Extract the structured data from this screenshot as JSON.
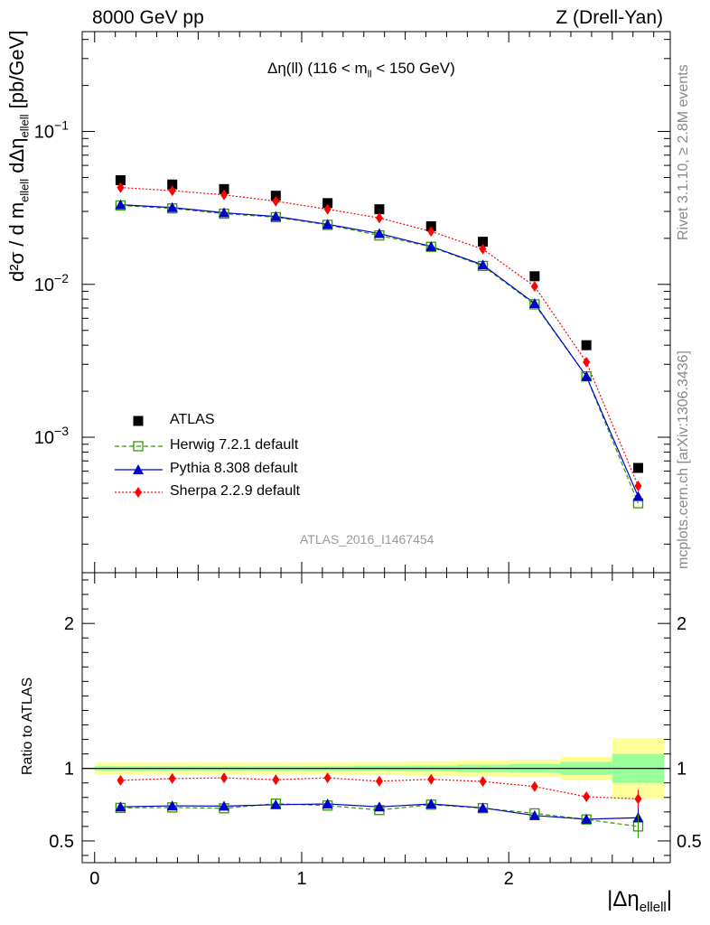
{
  "header": {
    "left": "8000 GeV pp",
    "right": "Z (Drell-Yan)"
  },
  "side_labels": {
    "rivet": "Rivet 3.1.10, ≥ 2.8M events",
    "mcplots": "mcplots.cern.ch [arXiv:1306.3436]"
  },
  "analysis_id": "ATLAS_2016_I1467454",
  "chart_data": [
    {
      "type": "scatter",
      "title": {
        "prefix": "Δη(ll) (116 < m",
        "sub": "ll",
        "suffix": " < 150 GeV)"
      },
      "ylabel": "d²σ / d m_ellell dΔη_ellell [pb/GeV]",
      "ylabel_parts": {
        "num": "d²σ",
        "den": "d m",
        "den_sub": "ellell",
        "den_mid": " dΔη",
        "den_sub2": "ellell",
        "unit": "[pb/GeV]"
      },
      "yscale": "log",
      "xlim": [
        -0.06,
        2.78
      ],
      "ylim": [
        0.00013,
        0.45
      ],
      "yticks": [
        0.001,
        0.01,
        0.1
      ],
      "ytick_labels": [
        [
          "10",
          "−3"
        ],
        [
          "10",
          "−2"
        ],
        [
          "10",
          "−1"
        ]
      ],
      "x": [
        0.125,
        0.375,
        0.625,
        0.875,
        1.125,
        1.375,
        1.625,
        1.875,
        2.125,
        2.375,
        2.625
      ],
      "legend_position": "lower-left",
      "series": [
        {
          "name": "ATLAS",
          "style": "data",
          "color": "#000000",
          "values": [
            0.048,
            0.045,
            0.042,
            0.038,
            0.034,
            0.031,
            0.024,
            0.019,
            0.0113,
            0.004,
            0.00063
          ]
        },
        {
          "name": "Herwig 7.2.1 default",
          "style": "herwig",
          "color": "#339900",
          "values": [
            0.0328,
            0.0314,
            0.029,
            0.0275,
            0.0245,
            0.0209,
            0.0176,
            0.0132,
            0.0074,
            0.0025,
            0.00037
          ]
        },
        {
          "name": "Pythia 8.308 default",
          "style": "pythia",
          "color": "#0000cc",
          "values": [
            0.0332,
            0.0318,
            0.0294,
            0.0278,
            0.0247,
            0.0215,
            0.0177,
            0.0134,
            0.0075,
            0.0025,
            0.00041
          ]
        },
        {
          "name": "Sherpa 2.2.9 default",
          "style": "sherpa",
          "color": "#ff0000",
          "values": [
            0.043,
            0.041,
            0.0385,
            0.035,
            0.031,
            0.0272,
            0.0222,
            0.017,
            0.0097,
            0.0031,
            0.00048
          ]
        }
      ]
    },
    {
      "type": "scatter",
      "ylabel": "Ratio to ATLAS",
      "ylim": [
        0.35,
        2.35
      ],
      "yticks": [
        0.5,
        1,
        2
      ],
      "ytick_labels": [
        "0.5",
        "1",
        "2"
      ],
      "xlabel_parts": {
        "main": "|Δη",
        "sub": "ellell",
        "end": "|"
      },
      "xticks": [
        0,
        1,
        2
      ],
      "xtick_labels": [
        "0",
        "1",
        "2"
      ],
      "x": [
        0.125,
        0.375,
        0.625,
        0.875,
        1.125,
        1.375,
        1.625,
        1.875,
        2.125,
        2.375,
        2.625
      ],
      "bin_edges": [
        0,
        0.25,
        0.5,
        0.75,
        1,
        1.25,
        1.5,
        1.75,
        2,
        2.25,
        2.5,
        2.75
      ],
      "uncertainty_total": [
        0.04,
        0.04,
        0.04,
        0.04,
        0.04,
        0.045,
        0.05,
        0.055,
        0.06,
        0.08,
        0.21
      ],
      "uncertainty_stat": [
        0.015,
        0.015,
        0.015,
        0.015,
        0.015,
        0.018,
        0.02,
        0.025,
        0.03,
        0.045,
        0.1
      ],
      "colors": {
        "total_band": "#ffff99",
        "stat_band": "#99ff99"
      },
      "series": [
        {
          "name": "Herwig 7.2.1 default",
          "style": "herwig",
          "color": "#339900",
          "values": [
            0.728,
            0.731,
            0.725,
            0.757,
            0.744,
            0.713,
            0.75,
            0.726,
            0.69,
            0.648,
            0.6
          ]
        },
        {
          "name": "Pythia 8.308 default",
          "style": "pythia",
          "color": "#0000cc",
          "values": [
            0.735,
            0.742,
            0.74,
            0.75,
            0.755,
            0.735,
            0.755,
            0.728,
            0.675,
            0.65,
            0.66
          ]
        },
        {
          "name": "Sherpa 2.2.9 default",
          "style": "sherpa",
          "color": "#ff0000",
          "values": [
            0.918,
            0.93,
            0.935,
            0.922,
            0.935,
            0.912,
            0.925,
            0.91,
            0.875,
            0.805,
            0.79
          ]
        }
      ]
    }
  ]
}
